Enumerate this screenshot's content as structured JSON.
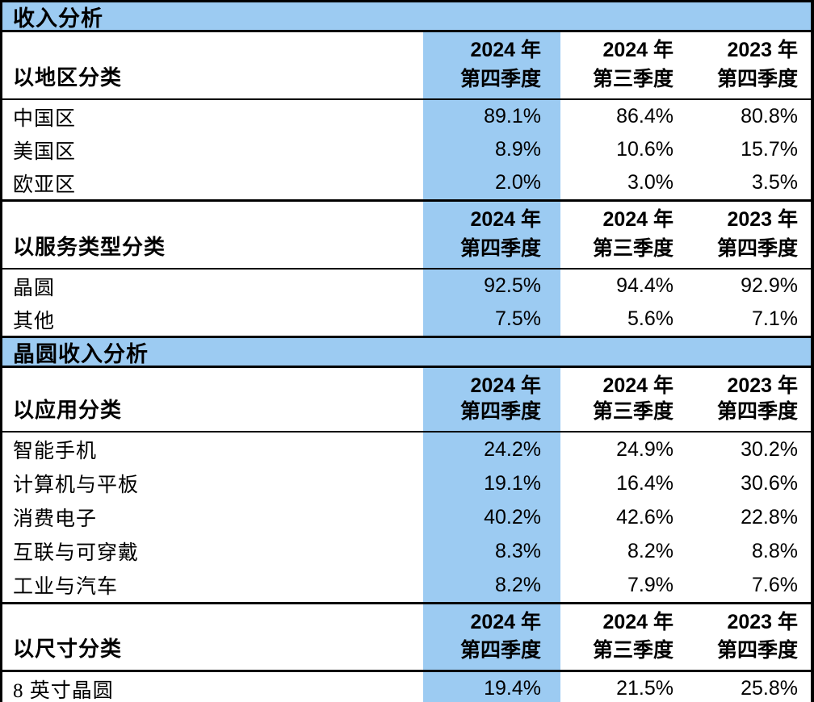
{
  "document": {
    "section_titles": {
      "revenue": "收入分析",
      "wafer_revenue": "晶圆收入分析"
    },
    "period_cols": [
      {
        "line1": "2024 年",
        "line2": "第四季度",
        "highlighted": true
      },
      {
        "line1": "2024 年",
        "line2": "第三季度",
        "highlighted": false
      },
      {
        "line1": "2023 年",
        "line2": "第四季度",
        "highlighted": false
      }
    ],
    "headers": {
      "region": {
        "label": "以地区分类"
      },
      "service": {
        "label": "以服务类型分类"
      },
      "application": {
        "label": "以应用分类"
      },
      "size": {
        "label": "以尺寸分类"
      }
    },
    "rows": {
      "region": [
        {
          "label": "中国区",
          "v1": "89.1%",
          "v2": "86.4%",
          "v3": "80.8%"
        },
        {
          "label": "美国区",
          "v1": "8.9%",
          "v2": "10.6%",
          "v3": "15.7%"
        },
        {
          "label": "欧亚区",
          "v1": "2.0%",
          "v2": "3.0%",
          "v3": "3.5%"
        }
      ],
      "service": [
        {
          "label": "晶圆",
          "v1": "92.5%",
          "v2": "94.4%",
          "v3": "92.9%"
        },
        {
          "label": "其他",
          "v1": "7.5%",
          "v2": "5.6%",
          "v3": "7.1%"
        }
      ],
      "application": [
        {
          "label": "智能手机",
          "v1": "24.2%",
          "v2": "24.9%",
          "v3": "30.2%"
        },
        {
          "label": "计算机与平板",
          "v1": "19.1%",
          "v2": "16.4%",
          "v3": "30.6%"
        },
        {
          "label": "消费电子",
          "v1": "40.2%",
          "v2": "42.6%",
          "v3": "22.8%"
        },
        {
          "label": "互联与可穿戴",
          "v1": "8.3%",
          "v2": "8.2%",
          "v3": "8.8%"
        },
        {
          "label": "工业与汽车",
          "v1": "8.2%",
          "v2": "7.9%",
          "v3": "7.6%"
        }
      ],
      "size": [
        {
          "label": "8 英寸晶圆",
          "v1": "19.4%",
          "v2": "21.5%",
          "v3": "25.8%"
        }
      ]
    },
    "colors": {
      "highlight_column": "#9CCBF2",
      "title_bar": "#9CCBF2",
      "border": "#000000"
    }
  }
}
